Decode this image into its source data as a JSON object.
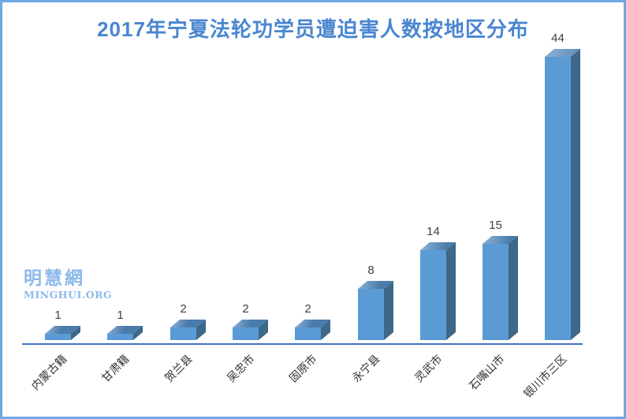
{
  "frame": {
    "border_color": "#6fa8e2",
    "background": "#ffffff"
  },
  "title": {
    "text": "2017年宁夏法轮功学员遭迫害人数按地区分布",
    "color": "#4a86d0"
  },
  "watermark": {
    "line1": "明慧網",
    "line2": "MINGHUI.ORG",
    "color": "#8cb9ea"
  },
  "chart_data": {
    "type": "bar",
    "style": "3d-cuboid-bars",
    "title": "2017年宁夏法轮功学员遭迫害人数按地区分布",
    "categories": [
      "内蒙古籍",
      "甘肃籍",
      "贺兰县",
      "吴忠市",
      "固原市",
      "永宁县",
      "灵武市",
      "石嘴山市",
      "银川市三区"
    ],
    "values": [
      1,
      1,
      2,
      2,
      2,
      8,
      14,
      15,
      44
    ],
    "data_labels_shown": true,
    "xlabel": "",
    "ylabel": "",
    "ylim": [
      0,
      44
    ],
    "grid": "off",
    "legend": "none",
    "x_tick_label_rotation_deg": 45,
    "colors": {
      "bar_front": "#5b9bd5",
      "bar_top": "#4a7cab",
      "bar_top_highlight": "#8fb4da",
      "bar_side": "#3d6889",
      "axis_line": "#4472c4",
      "value_label": "#3f3f3f",
      "category_label": "#333333"
    }
  }
}
